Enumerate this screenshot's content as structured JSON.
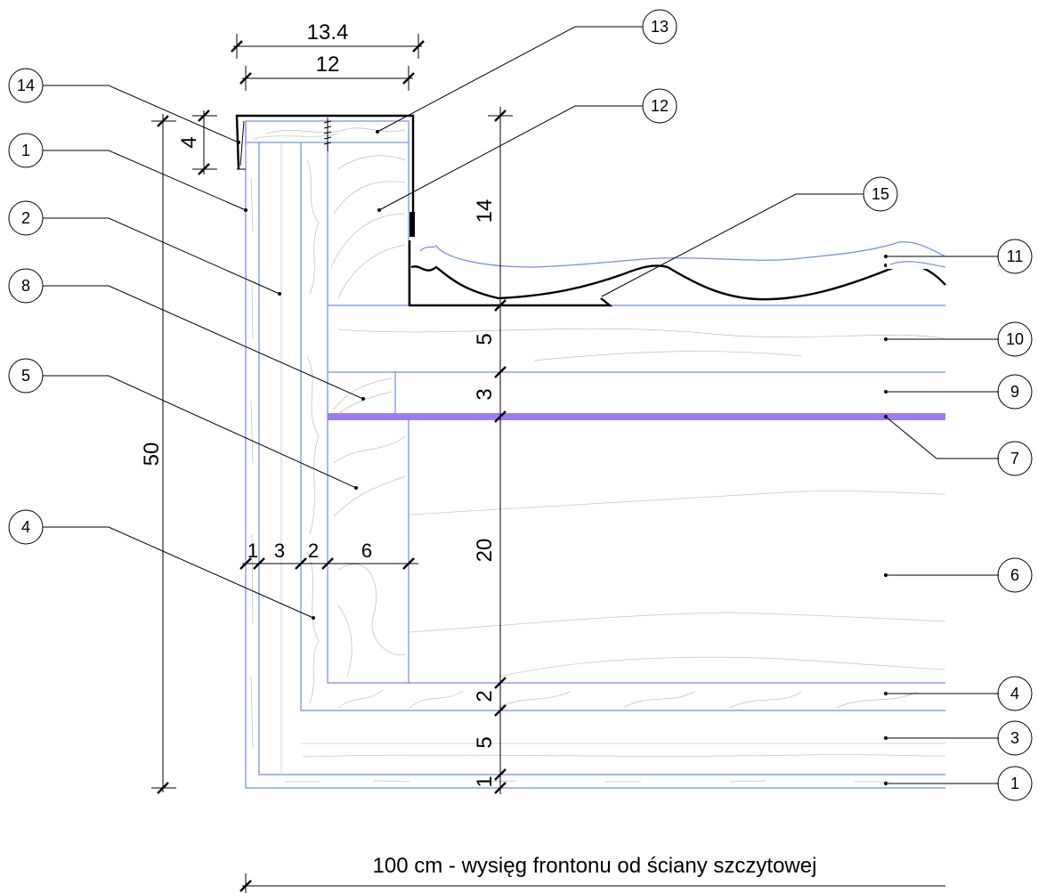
{
  "dimensions": {
    "top_overall": "13.4",
    "top_inner": "12",
    "cap_height": "4",
    "overall_height": "50",
    "layer_widths": [
      "1",
      "3",
      "2",
      "6"
    ],
    "height_14": "14",
    "layer_5_top": "5",
    "layer_3": "3",
    "layer_20": "20",
    "layer_2": "2",
    "layer_5_bottom": "5",
    "layer_1": "1"
  },
  "tags": {
    "t14": "14",
    "t1": "1",
    "t2": "2",
    "t8": "8",
    "t5": "5",
    "t4": "4",
    "t13": "13",
    "t12": "12",
    "t15": "15",
    "t11": "11",
    "t10": "10",
    "t9": "9",
    "t7": "7",
    "t6": "6",
    "t4r": "4",
    "t3r": "3",
    "t1r": "1"
  },
  "caption": "100 cm - wysięg frontonu od ściany szczytowej",
  "colors": {
    "outline": "#6f8ee6",
    "membrane": "#9b7cf0",
    "ink": "#000000"
  }
}
